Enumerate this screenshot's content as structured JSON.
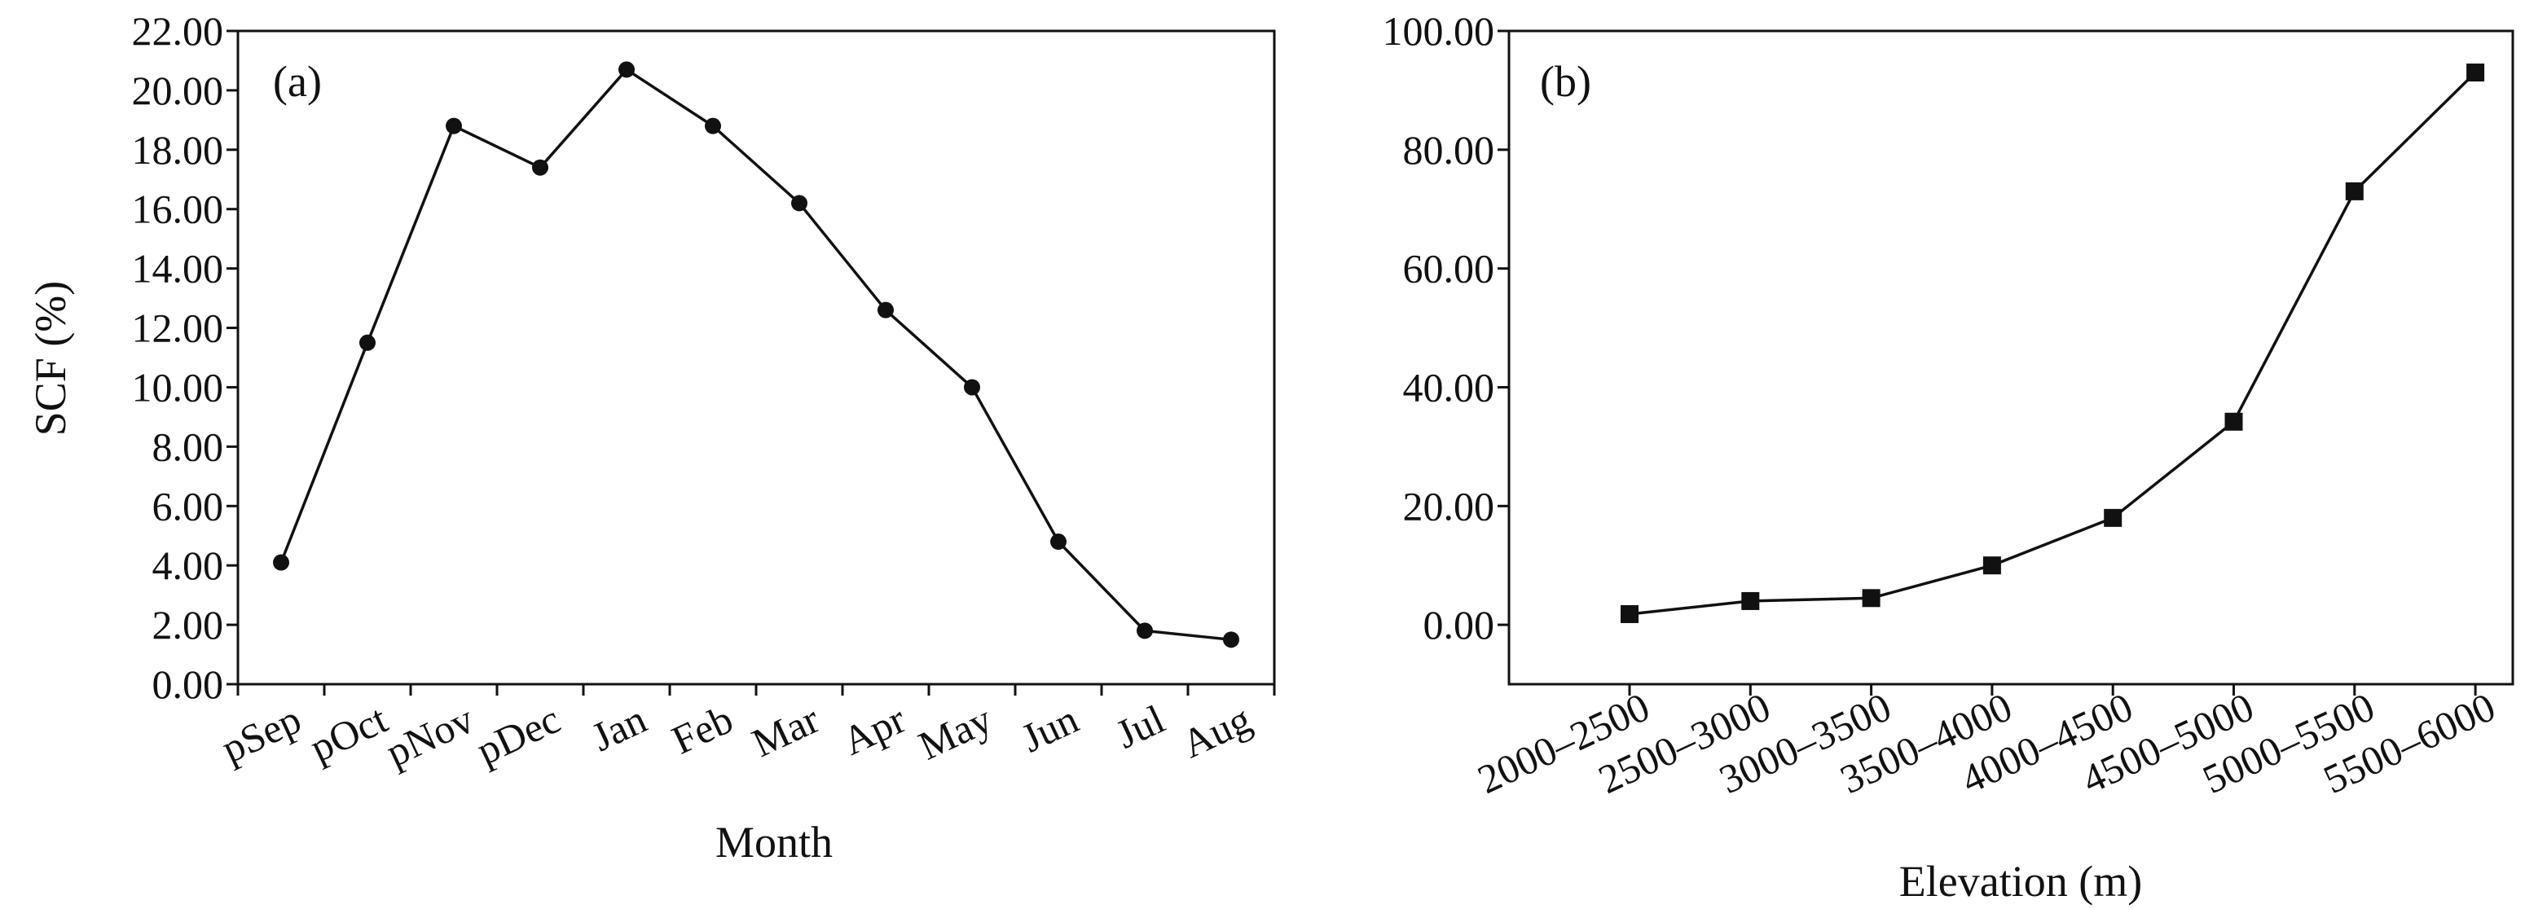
{
  "chart_data": [
    {
      "type": "line",
      "panel_label": "(a)",
      "xlabel": "Month",
      "ylabel": "SCF (%)",
      "ylim": [
        0,
        22
      ],
      "yticks": [
        "0.00",
        "2.00",
        "4.00",
        "6.00",
        "8.00",
        "10.00",
        "12.00",
        "14.00",
        "16.00",
        "18.00",
        "20.00",
        "22.00"
      ],
      "categories": [
        "pSep",
        "pOct",
        "pNov",
        "pDec",
        "Jan",
        "Feb",
        "Mar",
        "Apr",
        "May",
        "Jun",
        "Jul",
        "Aug"
      ],
      "values": [
        4.1,
        11.5,
        18.8,
        17.4,
        20.7,
        18.8,
        16.2,
        12.6,
        10.0,
        4.8,
        1.8,
        1.5
      ],
      "marker": "circle",
      "color": "#111111"
    },
    {
      "type": "line",
      "panel_label": "(b)",
      "xlabel": "Elevation (m)",
      "ylabel": "",
      "ylim": [
        -10,
        100
      ],
      "yticks": [
        "0.00",
        "20.00",
        "40.00",
        "60.00",
        "80.00",
        "100.00"
      ],
      "categories": [
        "2000–2500",
        "2500–3000",
        "3000–3500",
        "3500–4000",
        "4000–4500",
        "4500–5000",
        "5000–5500",
        "5500–6000"
      ],
      "values": [
        1.8,
        4.0,
        4.5,
        10.0,
        18.0,
        34.2,
        73.0,
        93.0
      ],
      "marker": "square",
      "color": "#111111"
    }
  ]
}
